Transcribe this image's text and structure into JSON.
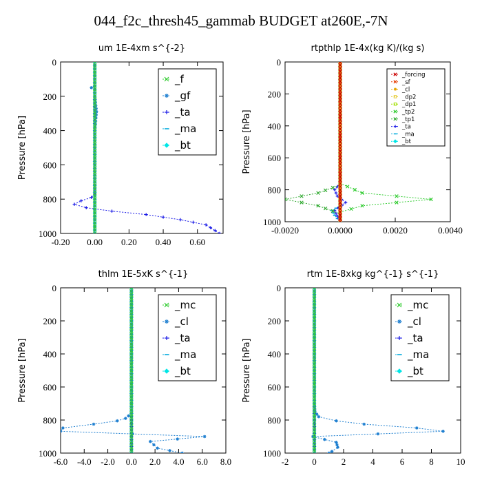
{
  "title": "044_f2c_thresh45_gammab  BUDGET at260E,-7N",
  "chart_data": [
    {
      "type": "line",
      "title": "um   1E-4xm s^{-2}",
      "ylabel": "Pressure [hPa]",
      "xlim": [
        -0.2,
        0.75
      ],
      "ylim": [
        1000,
        0
      ],
      "xticks": [
        -0.2,
        0.0,
        0.2,
        0.4,
        0.6
      ],
      "xtick_labels": [
        "-0.20",
        "0.00",
        "0.20",
        "0.40",
        "0.60"
      ],
      "yticks": [
        0,
        200,
        400,
        600,
        800,
        1000
      ],
      "legend_style": "big",
      "series": [
        {
          "name": "_f",
          "color": "#33cc33",
          "marker": "x",
          "points": [
            [
              0,
              0
            ],
            [
              0,
              100
            ],
            [
              0,
              200
            ],
            [
              0,
              300
            ],
            [
              0,
              400
            ],
            [
              0,
              500
            ],
            [
              0,
              600
            ],
            [
              0,
              700
            ],
            [
              0,
              800
            ],
            [
              0,
              900
            ],
            [
              0,
              1000
            ]
          ]
        },
        {
          "name": "_gf",
          "color": "#1e7fd0",
          "marker": "star",
          "points": [
            [
              0,
              0
            ],
            [
              0,
              100
            ],
            [
              0,
              140
            ],
            [
              -0.02,
              150
            ],
            [
              0,
              160
            ],
            [
              0,
              200
            ],
            [
              0.01,
              290
            ],
            [
              0,
              400
            ],
            [
              0,
              600
            ],
            [
              0,
              780
            ],
            [
              0,
              860
            ],
            [
              0,
              1000
            ]
          ]
        },
        {
          "name": "_ta",
          "color": "#1a1ae6",
          "marker": "plus",
          "points": [
            [
              0,
              0
            ],
            [
              0,
              700
            ],
            [
              0,
              770
            ],
            [
              -0.02,
              790
            ],
            [
              -0.08,
              810
            ],
            [
              -0.12,
              830
            ],
            [
              -0.05,
              850
            ],
            [
              0.1,
              870
            ],
            [
              0.3,
              890
            ],
            [
              0.5,
              920
            ],
            [
              0.65,
              950
            ],
            [
              0.73,
              1000
            ]
          ]
        },
        {
          "name": "_ma",
          "color": "#00aadd",
          "marker": "dash",
          "points": [
            [
              0,
              0
            ],
            [
              0,
              1000
            ]
          ]
        },
        {
          "name": "_bt",
          "color": "#00e6e6",
          "marker": "diamond",
          "points": [
            [
              0,
              0
            ],
            [
              0,
              1000
            ]
          ]
        }
      ]
    },
    {
      "type": "line",
      "title": "rtpthlp   1E-4x(kg K)/(kg s)",
      "ylabel": "Pressure [hPa]",
      "xlim": [
        -0.002,
        0.004
      ],
      "ylim": [
        1000,
        0
      ],
      "xticks": [
        -0.002,
        0.0,
        0.002,
        0.004
      ],
      "xtick_labels": [
        "-0.0020",
        "0.0000",
        "0.0020",
        "0.0040"
      ],
      "yticks": [
        0,
        200,
        400,
        600,
        800,
        1000
      ],
      "legend_style": "small",
      "series": [
        {
          "name": "_forcing",
          "color": "#cc0000",
          "marker": "x",
          "points": [
            [
              0,
              0
            ],
            [
              0,
              1000
            ]
          ]
        },
        {
          "name": "_sf",
          "color": "#e63c00",
          "marker": "x",
          "points": [
            [
              0,
              0
            ],
            [
              0,
              1000
            ]
          ]
        },
        {
          "name": "_cl",
          "color": "#e6a600",
          "marker": "star",
          "points": [
            [
              0,
              0
            ],
            [
              0,
              1000
            ]
          ]
        },
        {
          "name": "_dp2",
          "color": "#e6cc33",
          "marker": "square",
          "points": [
            [
              0,
              0
            ],
            [
              0,
              1000
            ]
          ]
        },
        {
          "name": "_dp1",
          "color": "#a0e000",
          "marker": "square",
          "points": [
            [
              0,
              0
            ],
            [
              0,
              1000
            ]
          ]
        },
        {
          "name": "_tp2",
          "color": "#33cc33",
          "marker": "x",
          "points": [
            [
              0,
              0
            ],
            [
              0,
              760
            ],
            [
              0.0008,
              820
            ],
            [
              0.0033,
              860
            ],
            [
              0.0008,
              900
            ],
            [
              0,
              940
            ],
            [
              0,
              1000
            ]
          ]
        },
        {
          "name": "_tp1",
          "color": "#33aa33",
          "marker": "x",
          "points": [
            [
              0,
              0
            ],
            [
              0,
              770
            ],
            [
              -0.0008,
              820
            ],
            [
              -0.002,
              860
            ],
            [
              -0.0008,
              900
            ],
            [
              0,
              950
            ],
            [
              0,
              1000
            ]
          ]
        },
        {
          "name": "_ta",
          "color": "#1a1ae6",
          "marker": "plus",
          "points": [
            [
              0,
              0
            ],
            [
              0,
              760
            ],
            [
              -0.0002,
              800
            ],
            [
              -0.0001,
              840
            ],
            [
              0.0002,
              880
            ],
            [
              -0.0002,
              930
            ],
            [
              0,
              1000
            ]
          ]
        },
        {
          "name": "_ma",
          "color": "#00aadd",
          "marker": "dash",
          "points": [
            [
              0,
              0
            ],
            [
              0,
              900
            ],
            [
              -0.0003,
              930
            ],
            [
              -0.0002,
              960
            ],
            [
              0,
              1000
            ]
          ]
        },
        {
          "name": "_bt",
          "color": "#00e6e6",
          "marker": "diamond",
          "points": [
            [
              0,
              0
            ],
            [
              0,
              1000
            ]
          ]
        }
      ]
    },
    {
      "type": "line",
      "title": "thlm   1E-5xK s^{-1}",
      "ylabel": "Pressure [hPa]",
      "xlim": [
        -6.0,
        8.0
      ],
      "ylim": [
        1000,
        0
      ],
      "xticks": [
        -6.0,
        -4.0,
        -2.0,
        0.0,
        2.0,
        4.0,
        6.0,
        8.0
      ],
      "xtick_labels": [
        "-6.0",
        "-4.0",
        "-2.0",
        "0.0",
        "2.0",
        "4.0",
        "6.0",
        "8.0"
      ],
      "yticks": [
        0,
        200,
        400,
        600,
        800,
        1000
      ],
      "legend_style": "big",
      "series": [
        {
          "name": "_mc",
          "color": "#33cc33",
          "marker": "x",
          "points": [
            [
              0,
              0
            ],
            [
              0,
              1000
            ]
          ]
        },
        {
          "name": "_cl",
          "color": "#1e7fd0",
          "marker": "star",
          "points": [
            [
              0,
              0
            ],
            [
              0,
              700
            ],
            [
              0,
              760
            ],
            [
              -0.5,
              790
            ],
            [
              -1.2,
              805
            ],
            [
              -3.2,
              825
            ],
            [
              -5.8,
              848
            ],
            [
              -6.0,
              868
            ],
            [
              6.2,
              900
            ],
            [
              1.6,
              930
            ],
            [
              2.2,
              970
            ],
            [
              4.3,
              1000
            ]
          ]
        },
        {
          "name": "_ta",
          "color": "#1a1ae6",
          "marker": "plus",
          "points": [
            [
              0,
              0
            ],
            [
              0,
              1000
            ]
          ]
        },
        {
          "name": "_ma",
          "color": "#00aadd",
          "marker": "dash",
          "points": [
            [
              0,
              0
            ],
            [
              0,
              1000
            ]
          ]
        },
        {
          "name": "_bt",
          "color": "#00e6e6",
          "marker": "diamond",
          "points": [
            [
              0,
              0
            ],
            [
              0,
              1000
            ]
          ]
        }
      ]
    },
    {
      "type": "line",
      "title": "rtm   1E-8xkg kg^{-1} s^{-1}",
      "ylabel": "Pressure [hPa]",
      "xlim": [
        -2,
        10
      ],
      "ylim": [
        1000,
        0
      ],
      "xticks": [
        -2,
        0,
        2,
        4,
        6,
        8,
        10
      ],
      "xtick_labels": [
        "-2",
        "0",
        "2",
        "4",
        "6",
        "8",
        "10"
      ],
      "yticks": [
        0,
        200,
        400,
        600,
        800,
        1000
      ],
      "legend_style": "big",
      "series": [
        {
          "name": "_mc",
          "color": "#33cc33",
          "marker": "x",
          "points": [
            [
              0,
              0
            ],
            [
              0,
              1000
            ]
          ]
        },
        {
          "name": "_cl",
          "color": "#1e7fd0",
          "marker": "star",
          "points": [
            [
              0,
              0
            ],
            [
              0,
              700
            ],
            [
              0.05,
              750
            ],
            [
              0.3,
              780
            ],
            [
              1.5,
              805
            ],
            [
              3.4,
              825
            ],
            [
              7.0,
              848
            ],
            [
              8.8,
              868
            ],
            [
              -0.1,
              900
            ],
            [
              1.5,
              935
            ],
            [
              1.6,
              965
            ],
            [
              1.2,
              990
            ],
            [
              1.0,
              1000
            ]
          ]
        },
        {
          "name": "_ta",
          "color": "#1a1ae6",
          "marker": "plus",
          "points": [
            [
              0,
              0
            ],
            [
              0,
              1000
            ]
          ]
        },
        {
          "name": "_ma",
          "color": "#00aadd",
          "marker": "dash",
          "points": [
            [
              0,
              0
            ],
            [
              0,
              1000
            ]
          ]
        },
        {
          "name": "_bt",
          "color": "#00e6e6",
          "marker": "diamond",
          "points": [
            [
              0,
              0
            ],
            [
              0,
              1000
            ]
          ]
        }
      ]
    }
  ]
}
